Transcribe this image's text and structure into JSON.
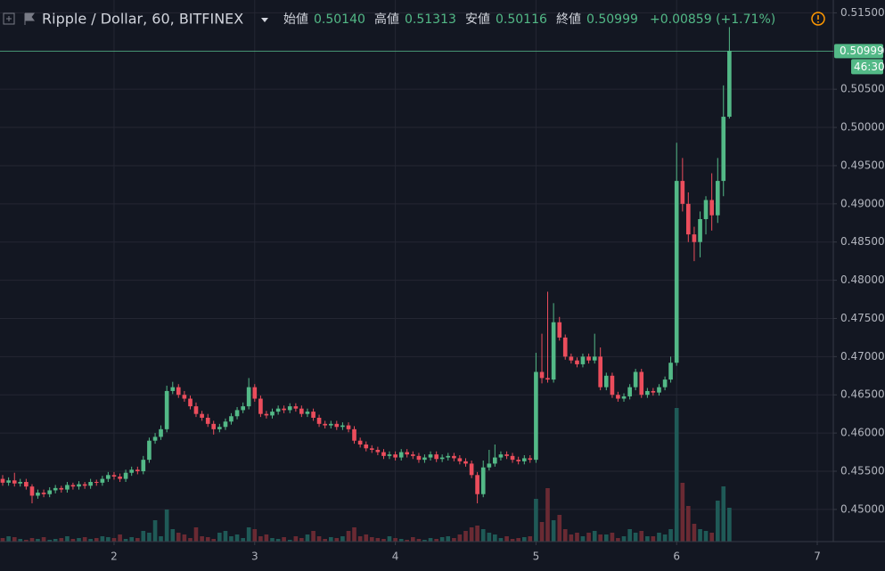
{
  "chart_data": {
    "type": "candlestick",
    "title": "Ripple / Dollar, 60, BITFINEX",
    "ohlc_legend": {
      "open_label": "始値",
      "open": "0.50140",
      "high_label": "高値",
      "high": "0.51313",
      "low_label": "安値",
      "low": "0.50116",
      "close_label": "終値",
      "close": "0.50999",
      "change": "+0.00859 (+1.71%)"
    },
    "last_price_label": "0.50999",
    "countdown": "46:30",
    "x": [
      1.208,
      1.25,
      1.292,
      1.333,
      1.375,
      1.417,
      1.458,
      1.5,
      1.542,
      1.583,
      1.625,
      1.667,
      1.708,
      1.75,
      1.792,
      1.833,
      1.875,
      1.917,
      1.958,
      2,
      2.042,
      2.083,
      2.125,
      2.167,
      2.208,
      2.25,
      2.292,
      2.333,
      2.375,
      2.417,
      2.458,
      2.5,
      2.542,
      2.583,
      2.625,
      2.667,
      2.708,
      2.75,
      2.792,
      2.833,
      2.875,
      2.917,
      2.958,
      3,
      3.042,
      3.083,
      3.125,
      3.167,
      3.208,
      3.25,
      3.292,
      3.333,
      3.375,
      3.417,
      3.458,
      3.5,
      3.542,
      3.583,
      3.625,
      3.667,
      3.708,
      3.75,
      3.792,
      3.833,
      3.875,
      3.917,
      3.958,
      4,
      4.042,
      4.083,
      4.125,
      4.167,
      4.208,
      4.25,
      4.292,
      4.333,
      4.375,
      4.417,
      4.458,
      4.5,
      4.542,
      4.583,
      4.625,
      4.667,
      4.708,
      4.75,
      4.792,
      4.833,
      4.875,
      4.917,
      4.958,
      5,
      5.042,
      5.083,
      5.125,
      5.167,
      5.208,
      5.25,
      5.292,
      5.333,
      5.375,
      5.417,
      5.458,
      5.5,
      5.542,
      5.583,
      5.625,
      5.667,
      5.708,
      5.75,
      5.792,
      5.833,
      5.875,
      5.917,
      5.958,
      6,
      6.042,
      6.083,
      6.125,
      6.167,
      6.208,
      6.25,
      6.292,
      6.333,
      6.375
    ],
    "open": [
      0.454,
      0.4535,
      0.4538,
      0.4534,
      0.4536,
      0.453,
      0.4518,
      0.4522,
      0.452,
      0.4525,
      0.4528,
      0.4526,
      0.4532,
      0.453,
      0.4533,
      0.4531,
      0.4536,
      0.4535,
      0.454,
      0.4545,
      0.4543,
      0.454,
      0.4548,
      0.4552,
      0.455,
      0.4565,
      0.459,
      0.4595,
      0.4605,
      0.4655,
      0.466,
      0.465,
      0.4645,
      0.4635,
      0.4625,
      0.462,
      0.4612,
      0.4605,
      0.4608,
      0.4615,
      0.4622,
      0.463,
      0.4635,
      0.466,
      0.4645,
      0.4625,
      0.4623,
      0.4628,
      0.4632,
      0.463,
      0.4635,
      0.4632,
      0.4625,
      0.4628,
      0.462,
      0.4612,
      0.461,
      0.4612,
      0.4608,
      0.461,
      0.4605,
      0.459,
      0.4585,
      0.458,
      0.4578,
      0.4575,
      0.457,
      0.4572,
      0.4568,
      0.4575,
      0.4572,
      0.457,
      0.4565,
      0.4568,
      0.4572,
      0.4566,
      0.4568,
      0.457,
      0.4567,
      0.4563,
      0.456,
      0.4545,
      0.452,
      0.4555,
      0.456,
      0.4568,
      0.4572,
      0.457,
      0.4565,
      0.4563,
      0.4567,
      0.4565,
      0.468,
      0.4672,
      0.467,
      0.4745,
      0.4725,
      0.47,
      0.4695,
      0.469,
      0.47,
      0.4695,
      0.47,
      0.466,
      0.4675,
      0.465,
      0.4645,
      0.4648,
      0.466,
      0.468,
      0.465,
      0.4655,
      0.4653,
      0.466,
      0.467,
      0.4692,
      0.493,
      0.49,
      0.486,
      0.485,
      0.488,
      0.4905,
      0.4885,
      0.493,
      0.5014
    ],
    "high": [
      0.4545,
      0.4542,
      0.4548,
      0.454,
      0.454,
      0.4533,
      0.4526,
      0.4526,
      0.4529,
      0.4532,
      0.4531,
      0.4536,
      0.4535,
      0.4537,
      0.4536,
      0.454,
      0.4539,
      0.4544,
      0.4549,
      0.4549,
      0.4547,
      0.4552,
      0.4556,
      0.4556,
      0.457,
      0.4594,
      0.46,
      0.461,
      0.4662,
      0.4667,
      0.4664,
      0.4655,
      0.4649,
      0.464,
      0.4629,
      0.4625,
      0.4616,
      0.4612,
      0.4619,
      0.4626,
      0.4634,
      0.464,
      0.4672,
      0.4664,
      0.4649,
      0.4629,
      0.4632,
      0.4636,
      0.4636,
      0.4639,
      0.4639,
      0.4636,
      0.4632,
      0.4632,
      0.4624,
      0.4616,
      0.4616,
      0.4616,
      0.4614,
      0.4614,
      0.4609,
      0.4594,
      0.4589,
      0.4584,
      0.4582,
      0.4579,
      0.4576,
      0.4576,
      0.4579,
      0.4579,
      0.4576,
      0.4574,
      0.4572,
      0.4576,
      0.4576,
      0.4572,
      0.4574,
      0.4574,
      0.4571,
      0.4567,
      0.4564,
      0.4549,
      0.4564,
      0.4578,
      0.4585,
      0.4576,
      0.4576,
      0.4574,
      0.4569,
      0.4571,
      0.4571,
      0.4705,
      0.473,
      0.4785,
      0.477,
      0.4752,
      0.4729,
      0.4704,
      0.4699,
      0.4704,
      0.4704,
      0.473,
      0.4712,
      0.4679,
      0.4679,
      0.4654,
      0.4652,
      0.4664,
      0.4684,
      0.4684,
      0.4659,
      0.4659,
      0.4664,
      0.4674,
      0.47,
      0.498,
      0.496,
      0.4915,
      0.487,
      0.489,
      0.491,
      0.494,
      0.496,
      0.5055,
      0.51313
    ],
    "low": [
      0.4531,
      0.4531,
      0.453,
      0.453,
      0.4526,
      0.4508,
      0.4514,
      0.4516,
      0.4516,
      0.4521,
      0.4522,
      0.4522,
      0.4526,
      0.4526,
      0.4527,
      0.4527,
      0.4531,
      0.4531,
      0.4536,
      0.4539,
      0.4536,
      0.4536,
      0.4544,
      0.4546,
      0.4546,
      0.4561,
      0.4586,
      0.4591,
      0.4601,
      0.4651,
      0.4646,
      0.4641,
      0.4631,
      0.4621,
      0.4616,
      0.4608,
      0.4598,
      0.4601,
      0.4604,
      0.4611,
      0.4618,
      0.4626,
      0.4631,
      0.4641,
      0.4621,
      0.4619,
      0.4619,
      0.4624,
      0.4626,
      0.4626,
      0.4628,
      0.4621,
      0.4621,
      0.4616,
      0.4608,
      0.4606,
      0.4606,
      0.4604,
      0.4604,
      0.4601,
      0.4586,
      0.4581,
      0.4576,
      0.4574,
      0.4571,
      0.4566,
      0.4566,
      0.4564,
      0.4564,
      0.4568,
      0.4566,
      0.4561,
      0.4561,
      0.4564,
      0.4562,
      0.4562,
      0.4564,
      0.4563,
      0.4559,
      0.4556,
      0.4541,
      0.4508,
      0.4516,
      0.4551,
      0.4556,
      0.4564,
      0.4566,
      0.4561,
      0.4559,
      0.4559,
      0.4561,
      0.4561,
      0.4665,
      0.4666,
      0.4666,
      0.4721,
      0.4696,
      0.4691,
      0.4686,
      0.4686,
      0.4691,
      0.4691,
      0.4656,
      0.4656,
      0.4646,
      0.4641,
      0.4641,
      0.4644,
      0.4656,
      0.4646,
      0.4646,
      0.4649,
      0.4649,
      0.4656,
      0.4666,
      0.4688,
      0.489,
      0.485,
      0.4825,
      0.483,
      0.486,
      0.4865,
      0.4875,
      0.491,
      0.50116
    ],
    "close": [
      0.4535,
      0.4538,
      0.4534,
      0.4536,
      0.453,
      0.4518,
      0.4522,
      0.452,
      0.4525,
      0.4528,
      0.4526,
      0.4532,
      0.453,
      0.4533,
      0.4531,
      0.4536,
      0.4535,
      0.454,
      0.4545,
      0.4543,
      0.454,
      0.4548,
      0.4552,
      0.455,
      0.4565,
      0.459,
      0.4595,
      0.4605,
      0.4655,
      0.466,
      0.465,
      0.4645,
      0.4635,
      0.4625,
      0.462,
      0.4612,
      0.4605,
      0.4608,
      0.4615,
      0.4622,
      0.463,
      0.4635,
      0.466,
      0.4645,
      0.4625,
      0.4623,
      0.4628,
      0.4632,
      0.463,
      0.4635,
      0.4632,
      0.4625,
      0.4628,
      0.462,
      0.4612,
      0.461,
      0.4612,
      0.4608,
      0.461,
      0.4605,
      0.459,
      0.4585,
      0.458,
      0.4578,
      0.4575,
      0.457,
      0.4572,
      0.4568,
      0.4575,
      0.4572,
      0.457,
      0.4565,
      0.4568,
      0.4572,
      0.4566,
      0.4568,
      0.457,
      0.4567,
      0.4563,
      0.456,
      0.4545,
      0.452,
      0.4555,
      0.456,
      0.4568,
      0.4572,
      0.457,
      0.4565,
      0.4563,
      0.4567,
      0.4565,
      0.468,
      0.4672,
      0.467,
      0.4745,
      0.4725,
      0.47,
      0.4695,
      0.469,
      0.47,
      0.4695,
      0.47,
      0.466,
      0.4675,
      0.465,
      0.4645,
      0.4648,
      0.466,
      0.468,
      0.465,
      0.4655,
      0.4653,
      0.466,
      0.467,
      0.4692,
      0.493,
      0.49,
      0.486,
      0.485,
      0.488,
      0.4905,
      0.4885,
      0.493,
      0.5014,
      0.50999
    ],
    "volume": [
      4,
      6,
      5,
      3,
      2,
      4,
      3,
      5,
      2,
      3,
      4,
      6,
      3,
      4,
      5,
      3,
      4,
      6,
      5,
      4,
      8,
      3,
      5,
      4,
      12,
      10,
      24,
      6,
      36,
      14,
      10,
      8,
      4,
      16,
      6,
      5,
      3,
      10,
      12,
      6,
      8,
      4,
      16,
      14,
      6,
      8,
      4,
      3,
      5,
      2,
      6,
      4,
      8,
      12,
      6,
      3,
      5,
      4,
      6,
      12,
      16,
      6,
      8,
      5,
      4,
      3,
      6,
      4,
      3,
      2,
      5,
      3,
      2,
      4,
      3,
      5,
      6,
      4,
      8,
      12,
      16,
      18,
      14,
      10,
      8,
      4,
      6,
      3,
      4,
      5,
      6,
      48,
      22,
      60,
      24,
      30,
      14,
      8,
      10,
      6,
      10,
      12,
      8,
      8,
      10,
      4,
      6,
      14,
      10,
      12,
      6,
      6,
      10,
      8,
      14,
      150,
      66,
      40,
      20,
      14,
      12,
      10,
      46,
      62,
      38
    ],
    "xlim": [
      1.189,
      7.114
    ],
    "xticks": [
      2,
      3,
      4,
      5,
      6,
      7
    ],
    "ylim": [
      0.44579,
      0.51668
    ],
    "yticks": [
      {
        "value": 0.45,
        "label": "0.45000"
      },
      {
        "value": 0.455,
        "label": "0.45500"
      },
      {
        "value": 0.46,
        "label": "0.46000"
      },
      {
        "value": 0.465,
        "label": "0.46500"
      },
      {
        "value": 0.47,
        "label": "0.47000"
      },
      {
        "value": 0.475,
        "label": "0.47500"
      },
      {
        "value": 0.48,
        "label": "0.48000"
      },
      {
        "value": 0.485,
        "label": "0.48500"
      },
      {
        "value": 0.49,
        "label": "0.49000"
      },
      {
        "value": 0.495,
        "label": "0.49500"
      },
      {
        "value": 0.5,
        "label": "0.50000"
      },
      {
        "value": 0.505,
        "label": "0.50500"
      },
      {
        "value": 0.51,
        "label": "0.51000"
      },
      {
        "value": 0.515,
        "label": "0.51500"
      }
    ],
    "grid": true,
    "up_color": "#53b987",
    "down_color": "#eb4d5c",
    "volume_up_color": "#1f5a57",
    "volume_down_color": "#6a2a33"
  }
}
